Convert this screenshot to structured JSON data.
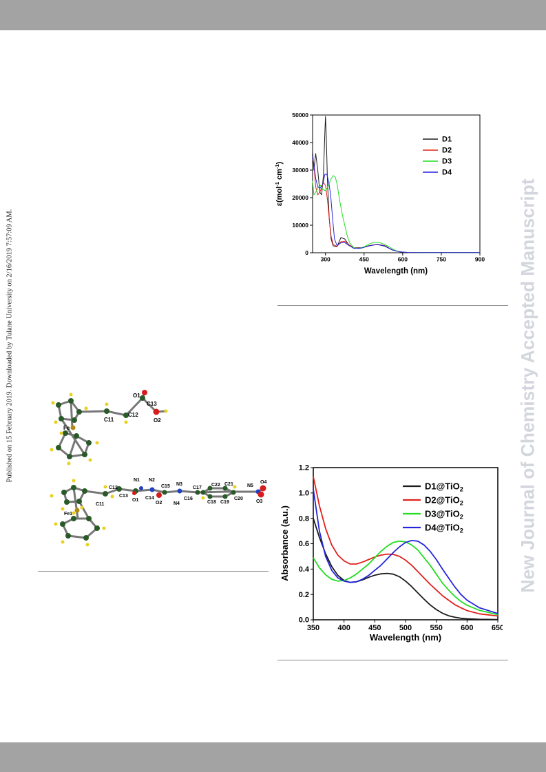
{
  "side_note": "Published on 15 February 2019. Downloaded by Tulane University on 2/16/2019 7:57:09 AM.",
  "watermark": "New Journal of Chemistry Accepted Manuscript",
  "colors": {
    "d1": "#1a1a1a",
    "d2": "#e0201a",
    "d3": "#22dd22",
    "d4": "#2424dd"
  },
  "structure_top": {
    "labels": [
      "O1",
      "C13",
      "C11",
      "C12",
      "O2",
      "Fe"
    ]
  },
  "structure_bottom": {
    "labels": [
      "N1",
      "N2",
      "C15",
      "N3",
      "C22",
      "C21",
      "N5",
      "O4",
      "C12",
      "C13",
      "O1",
      "C14",
      "O2",
      "N4",
      "C16",
      "C17",
      "C18",
      "C19",
      "C20",
      "O3",
      "C11",
      "Fe1"
    ]
  },
  "chart_data": [
    {
      "type": "line",
      "title": "",
      "xlabel": "Wavelength (nm)",
      "ylabel_main": "ε(mol",
      "ylabel_sup1": "-1",
      "ylabel_mid": " cm",
      "ylabel_sup2": "-1",
      "ylabel_end": ")",
      "xlim": [
        250,
        900
      ],
      "ylim": [
        0,
        50000
      ],
      "xticks": [
        "300",
        "450",
        "600",
        "750",
        "900"
      ],
      "yticks": [
        "0",
        "10000",
        "20000",
        "30000",
        "40000",
        "50000"
      ],
      "legend_position": "top-right",
      "series": [
        {
          "name": "D1",
          "x": [
            250,
            255,
            262,
            270,
            278,
            285,
            292,
            297,
            300,
            303,
            308,
            315,
            322,
            330,
            345,
            360,
            375,
            390,
            410,
            440,
            470,
            500,
            530,
            560,
            590,
            620,
            700,
            800,
            900
          ],
          "y": [
            37000,
            30000,
            36000,
            30000,
            22000,
            21000,
            28000,
            42000,
            49500,
            43000,
            25000,
            12000,
            5000,
            2500,
            2200,
            5500,
            5000,
            3000,
            1800,
            1800,
            2600,
            3000,
            2400,
            1000,
            300,
            100,
            50,
            50,
            50
          ]
        },
        {
          "name": "D2",
          "x": [
            250,
            255,
            262,
            270,
            278,
            285,
            292,
            300,
            308,
            315,
            322,
            330,
            345,
            360,
            375,
            390,
            410,
            440,
            470,
            500,
            530,
            560,
            590,
            620,
            700,
            800,
            900
          ],
          "y": [
            34000,
            32000,
            24000,
            21000,
            22000,
            23500,
            25500,
            24500,
            19000,
            12000,
            6000,
            3000,
            2300,
            4000,
            4200,
            3000,
            1700,
            1700,
            2500,
            3100,
            2600,
            1000,
            300,
            100,
            50,
            50,
            50
          ]
        },
        {
          "name": "D3",
          "x": [
            250,
            255,
            262,
            270,
            280,
            290,
            300,
            310,
            320,
            330,
            338,
            345,
            355,
            365,
            375,
            385,
            395,
            410,
            430,
            450,
            470,
            490,
            510,
            530,
            550,
            570,
            590,
            620,
            700,
            800,
            900
          ],
          "y": [
            26000,
            21000,
            22000,
            23500,
            24500,
            23000,
            22500,
            24000,
            26500,
            28000,
            27500,
            25000,
            19000,
            14000,
            10000,
            6000,
            3500,
            1800,
            1500,
            2100,
            3200,
            3800,
            3700,
            3000,
            2000,
            900,
            300,
            100,
            50,
            50,
            50
          ]
        },
        {
          "name": "D4",
          "x": [
            250,
            255,
            262,
            270,
            280,
            290,
            298,
            305,
            312,
            320,
            328,
            335,
            345,
            360,
            375,
            390,
            410,
            440,
            470,
            500,
            530,
            560,
            590,
            620,
            700,
            800,
            900
          ],
          "y": [
            35000,
            32000,
            27000,
            24000,
            23500,
            25000,
            28500,
            28500,
            26000,
            21000,
            12000,
            5000,
            2600,
            3600,
            3700,
            2700,
            1600,
            1700,
            2500,
            3000,
            2500,
            1000,
            300,
            100,
            50,
            50,
            50
          ]
        }
      ]
    },
    {
      "type": "line",
      "title": "",
      "xlabel": "Wavelength (nm)",
      "ylabel": "Absorbance (a.u.)",
      "xlim": [
        350,
        650
      ],
      "ylim": [
        0,
        1.2
      ],
      "xticks": [
        "350",
        "400",
        "450",
        "500",
        "550",
        "600",
        "650"
      ],
      "yticks": [
        "0.0",
        "0.2",
        "0.4",
        "0.6",
        "0.8",
        "1.0",
        "1.2"
      ],
      "legend_position": "top-right",
      "legend_sub": "2",
      "series": [
        {
          "name": "D1@TiO",
          "x": [
            350,
            360,
            370,
            380,
            390,
            400,
            410,
            420,
            430,
            440,
            450,
            460,
            470,
            480,
            490,
            500,
            510,
            520,
            530,
            540,
            550,
            560,
            570,
            580,
            590,
            600,
            620,
            650
          ],
          "y": [
            0.8,
            0.65,
            0.52,
            0.42,
            0.35,
            0.31,
            0.295,
            0.3,
            0.315,
            0.335,
            0.352,
            0.362,
            0.366,
            0.36,
            0.34,
            0.305,
            0.262,
            0.212,
            0.163,
            0.118,
            0.081,
            0.052,
            0.032,
            0.02,
            0.012,
            0.008,
            0.004,
            0.002
          ]
        },
        {
          "name": "D2@TiO",
          "x": [
            350,
            360,
            370,
            380,
            390,
            400,
            410,
            420,
            430,
            440,
            450,
            460,
            470,
            480,
            490,
            500,
            510,
            520,
            530,
            540,
            550,
            560,
            570,
            580,
            590,
            600,
            620,
            650
          ],
          "y": [
            1.13,
            0.9,
            0.72,
            0.59,
            0.51,
            0.465,
            0.44,
            0.44,
            0.455,
            0.475,
            0.495,
            0.51,
            0.518,
            0.516,
            0.5,
            0.47,
            0.43,
            0.38,
            0.33,
            0.28,
            0.235,
            0.19,
            0.155,
            0.12,
            0.095,
            0.073,
            0.047,
            0.03
          ]
        },
        {
          "name": "D3@TiO",
          "x": [
            350,
            360,
            370,
            380,
            390,
            400,
            410,
            420,
            430,
            440,
            450,
            460,
            470,
            480,
            490,
            500,
            510,
            520,
            530,
            540,
            550,
            560,
            570,
            580,
            590,
            600,
            620,
            650
          ],
          "y": [
            0.49,
            0.41,
            0.355,
            0.32,
            0.305,
            0.31,
            0.33,
            0.36,
            0.4,
            0.44,
            0.49,
            0.54,
            0.58,
            0.61,
            0.62,
            0.615,
            0.59,
            0.55,
            0.49,
            0.43,
            0.36,
            0.29,
            0.235,
            0.185,
            0.145,
            0.115,
            0.075,
            0.04
          ]
        },
        {
          "name": "D4@TiO",
          "x": [
            350,
            360,
            370,
            380,
            390,
            400,
            410,
            420,
            430,
            440,
            450,
            460,
            470,
            480,
            490,
            500,
            510,
            520,
            530,
            540,
            550,
            560,
            570,
            580,
            590,
            600,
            620,
            650
          ],
          "y": [
            1.03,
            0.7,
            0.5,
            0.39,
            0.33,
            0.305,
            0.295,
            0.3,
            0.32,
            0.35,
            0.39,
            0.43,
            0.48,
            0.53,
            0.575,
            0.61,
            0.625,
            0.62,
            0.59,
            0.54,
            0.475,
            0.4,
            0.33,
            0.26,
            0.2,
            0.155,
            0.095,
            0.05
          ]
        }
      ]
    }
  ]
}
